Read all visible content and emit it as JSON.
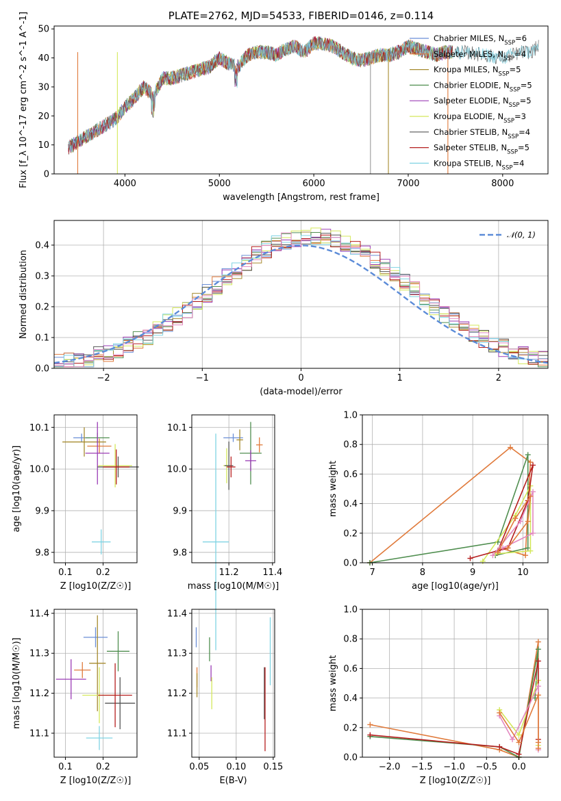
{
  "chart_data": [
    {
      "id": "spectrum",
      "type": "line",
      "title": "PLATE=2762, MJD=54533, FIBERID=0146, z=0.114",
      "xlabel": "wavelength [Angstrom, rest frame]",
      "ylabel": "Flux [f_λ 10^-17 erg cm^-2 s^-1 A^-1]",
      "xlim": [
        3250,
        8480
      ],
      "ylim": [
        0,
        51
      ],
      "xticks": [
        4000,
        5000,
        6000,
        7000,
        8000
      ],
      "yticks": [
        0,
        10,
        20,
        30,
        40,
        50
      ],
      "grid": false,
      "legend_position": "right",
      "envelope": {
        "x": [
          3400,
          3500,
          3600,
          3700,
          3800,
          3900,
          4000,
          4100,
          4200,
          4300,
          4400,
          4500,
          4700,
          4900,
          5000,
          5100,
          5200,
          5300,
          5400,
          5500,
          5600,
          5700,
          5800,
          5900,
          6000,
          6100,
          6200,
          6300,
          6400,
          6500,
          6600,
          6700,
          6800,
          6900,
          7000,
          7100,
          7200,
          7300,
          7400,
          7600,
          7800,
          8000,
          8100,
          8200,
          8300,
          8380
        ],
        "y": [
          9,
          11,
          13,
          15,
          17,
          19,
          23,
          26,
          30,
          27,
          33,
          33,
          35,
          37,
          40,
          38,
          37,
          41,
          42,
          42,
          41,
          43,
          44,
          42,
          45,
          45,
          44,
          42,
          40,
          39,
          40,
          41,
          41,
          42,
          44,
          43,
          42,
          41,
          42,
          42,
          41,
          40,
          41,
          42,
          42,
          44
        ]
      }
    },
    {
      "id": "residuals",
      "type": "histogram",
      "xlabel": "(data-model)/error",
      "ylabel": "Normed distribution",
      "xlim": [
        -2.5,
        2.5
      ],
      "ylim": [
        0,
        0.48
      ],
      "xticks": [
        -2,
        -1,
        0,
        1,
        2
      ],
      "yticks": [
        0.0,
        0.1,
        0.2,
        0.3,
        0.4
      ],
      "grid": true,
      "legend_position": "top-right",
      "legend_label": "𝒩(0, 1)",
      "bin_width": 0.1
    },
    {
      "id": "age_vs_Z",
      "type": "scatter",
      "xlabel": "Z [log10(Z/Z☉)]",
      "ylabel": "age [log10(age/yr)]",
      "xlim": [
        0.07,
        0.29
      ],
      "ylim": [
        9.775,
        10.13
      ],
      "xticks": [
        0.1,
        0.2
      ],
      "yticks": [
        9.8,
        9.9,
        10.0,
        10.1
      ],
      "grid": true,
      "points": [
        {
          "x": 0.143,
          "y": 10.075,
          "ex": 0.022,
          "ey": 0.01
        },
        {
          "x": 0.19,
          "y": 10.055,
          "ex": 0.032,
          "ey": 0.018
        },
        {
          "x": 0.15,
          "y": 10.065,
          "ex": 0.058,
          "ey": 0.035
        },
        {
          "x": 0.185,
          "y": 10.075,
          "ex": 0.032,
          "ey": 0.012
        },
        {
          "x": 0.185,
          "y": 10.038,
          "ex": 0.032,
          "ey": 0.075
        },
        {
          "x": 0.232,
          "y": 10.008,
          "ex": 0.045,
          "ey": 0.052
        },
        {
          "x": 0.24,
          "y": 10.005,
          "ex": 0.055,
          "ey": 0.025
        },
        {
          "x": 0.235,
          "y": 10.005,
          "ex": 0.035,
          "ey": 0.042
        },
        {
          "x": 0.195,
          "y": 9.825,
          "ex": 0.025,
          "ey": 0.03
        }
      ]
    },
    {
      "id": "age_vs_mass",
      "type": "scatter",
      "xlabel": "mass [log10(M/M☉)]",
      "ylabel": "",
      "xlim": [
        11.03,
        11.41
      ],
      "ylim": [
        9.775,
        10.13
      ],
      "xticks": [
        11.2,
        11.4
      ],
      "yticks": [
        9.8,
        9.9,
        10.0,
        10.1
      ],
      "grid": true,
      "points": [
        {
          "x": 11.22,
          "y": 10.075,
          "ex": 0.045,
          "ey": 0.01
        },
        {
          "x": 11.34,
          "y": 10.058,
          "ex": 0.015,
          "ey": 0.018
        },
        {
          "x": 11.25,
          "y": 10.07,
          "ex": 0.015,
          "ey": 0.025
        },
        {
          "x": 11.3,
          "y": 10.038,
          "ex": 0.05,
          "ey": 0.075
        },
        {
          "x": 11.3,
          "y": 10.02,
          "ex": 0.025,
          "ey": 0.025
        },
        {
          "x": 11.19,
          "y": 10.008,
          "ex": 0.015,
          "ey": 0.042
        },
        {
          "x": 11.2,
          "y": 10.008,
          "ex": 0.02,
          "ey": 0.058
        },
        {
          "x": 11.21,
          "y": 10.005,
          "ex": 0.02,
          "ey": 0.025
        },
        {
          "x": 11.14,
          "y": 9.825,
          "ex": 0.06,
          "ey": 0.26
        }
      ]
    },
    {
      "id": "weight_vs_age",
      "type": "line",
      "xlabel": "age [log10(age/yr)]",
      "ylabel": "mass weight",
      "xlim": [
        6.8,
        10.5
      ],
      "ylim": [
        0,
        1.0
      ],
      "xticks": [
        7,
        8,
        9,
        10
      ],
      "yticks": [
        0.0,
        0.2,
        0.4,
        0.6,
        0.8,
        1.0
      ],
      "grid": true,
      "series": [
        {
          "x": [
            6.95,
            9.75,
            10.15,
            10.05,
            9.55
          ],
          "y": [
            0.0,
            0.78,
            0.68,
            0.05,
            0.1
          ]
        },
        {
          "x": [
            6.95,
            9.5,
            10.1,
            10.1,
            9.45
          ],
          "y": [
            0.0,
            0.14,
            0.73,
            0.1,
            0.05
          ]
        },
        {
          "x": [
            9.2,
            9.85,
            10.15,
            10.15,
            9.45
          ],
          "y": [
            0.01,
            0.32,
            0.52,
            0.08,
            0.06
          ]
        },
        {
          "x": [
            8.95,
            9.7,
            10.1,
            10.2,
            9.5
          ],
          "y": [
            0.03,
            0.1,
            0.42,
            0.66,
            0.08
          ]
        },
        {
          "x": [
            9.4,
            9.95,
            10.2,
            10.2,
            9.6
          ],
          "y": [
            0.05,
            0.28,
            0.48,
            0.2,
            0.1
          ]
        },
        {
          "x": [
            9.5,
            9.85,
            10.15,
            10.1,
            9.7
          ],
          "y": [
            0.07,
            0.3,
            0.45,
            0.28,
            0.1
          ]
        }
      ]
    },
    {
      "id": "mass_vs_Z",
      "type": "scatter",
      "xlabel": "Z [log10(Z/Z☉)]",
      "ylabel": "mass [log10(M/M☉)]",
      "xlim": [
        0.07,
        0.29
      ],
      "ylim": [
        11.04,
        11.41
      ],
      "xticks": [
        0.1,
        0.2
      ],
      "yticks": [
        11.1,
        11.2,
        11.3,
        11.4
      ],
      "grid": true,
      "points": [
        {
          "x": 0.18,
          "y": 11.34,
          "ex": 0.032,
          "ey": 0.025
        },
        {
          "x": 0.145,
          "y": 11.258,
          "ex": 0.022,
          "ey": 0.02
        },
        {
          "x": 0.185,
          "y": 11.275,
          "ex": 0.022,
          "ey": 0.12
        },
        {
          "x": 0.24,
          "y": 11.305,
          "ex": 0.03,
          "ey": 0.05
        },
        {
          "x": 0.115,
          "y": 11.235,
          "ex": 0.04,
          "ey": 0.05
        },
        {
          "x": 0.19,
          "y": 11.195,
          "ex": 0.045,
          "ey": 0.07
        },
        {
          "x": 0.245,
          "y": 11.175,
          "ex": 0.04,
          "ey": 0.065
        },
        {
          "x": 0.232,
          "y": 11.195,
          "ex": 0.045,
          "ey": 0.08
        },
        {
          "x": 0.19,
          "y": 11.088,
          "ex": 0.035,
          "ey": 0.03
        }
      ]
    },
    {
      "id": "mass_vs_EBV",
      "type": "scatter",
      "xlabel": "E(B-V)",
      "ylabel": "",
      "xlim": [
        0.04,
        0.152
      ],
      "ylim": [
        11.04,
        11.41
      ],
      "xticks": [
        0.05,
        0.1,
        0.15
      ],
      "yticks": [
        11.1,
        11.2,
        11.3,
        11.4
      ],
      "grid": true,
      "points": [
        {
          "x": 0.046,
          "y": 11.34,
          "ey": 0.025
        },
        {
          "x": 0.047,
          "y": 11.24,
          "ey": 0.025
        },
        {
          "x": 0.047,
          "y": 11.22,
          "ey": 0.03
        },
        {
          "x": 0.064,
          "y": 11.31,
          "ey": 0.03
        },
        {
          "x": 0.066,
          "y": 11.25,
          "ey": 0.02
        },
        {
          "x": 0.067,
          "y": 11.2,
          "ey": 0.04
        },
        {
          "x": 0.138,
          "y": 11.2,
          "ey": 0.065
        },
        {
          "x": 0.139,
          "y": 11.16,
          "ey": 0.105
        },
        {
          "x": 0.146,
          "y": 11.305,
          "ey": 0.085
        }
      ]
    },
    {
      "id": "weight_vs_Z",
      "type": "line",
      "xlabel": "Z [log10(Z/Z☉)]",
      "ylabel": "mass weight",
      "xlim": [
        -2.42,
        0.45
      ],
      "ylim": [
        0,
        1.0
      ],
      "xticks": [
        -2.0,
        -1.5,
        -1.0,
        -0.5,
        0.0
      ],
      "yticks": [
        0.0,
        0.2,
        0.4,
        0.6,
        0.8,
        1.0
      ],
      "grid": true,
      "series": [
        {
          "x": [
            -2.3,
            -0.3,
            0.0,
            0.3,
            0.3
          ],
          "y": [
            0.22,
            0.05,
            0.0,
            0.78,
            0.1
          ]
        },
        {
          "x": [
            -2.3,
            -0.3,
            0.0,
            0.3,
            0.25
          ],
          "y": [
            0.14,
            0.07,
            0.0,
            0.73,
            0.4
          ]
        },
        {
          "x": [
            -0.3,
            0.0,
            0.3,
            0.3
          ],
          "y": [
            0.32,
            0.15,
            0.52,
            0.08
          ]
        },
        {
          "x": [
            -2.3,
            -0.3,
            0.0,
            0.3,
            0.3
          ],
          "y": [
            0.15,
            0.07,
            0.02,
            0.65,
            0.12
          ]
        },
        {
          "x": [
            -0.3,
            -0.1,
            0.3,
            0.3
          ],
          "y": [
            0.28,
            0.12,
            0.48,
            0.05
          ]
        },
        {
          "x": [
            -0.3,
            0.0,
            0.3,
            0.3
          ],
          "y": [
            0.3,
            0.1,
            0.42,
            0.06
          ]
        }
      ]
    }
  ],
  "legend": [
    {
      "label": "Chabrier MILES, N",
      "sub": "SSP",
      "eq": "=6",
      "color": "#6a8ed6"
    },
    {
      "label": "Salpeter MILES, N",
      "sub": "SSP",
      "eq": "=4",
      "color": "#e07a3b"
    },
    {
      "label": "Kroupa MILES, N",
      "sub": "SSP",
      "eq": "=5",
      "color": "#a68a2e"
    },
    {
      "label": "Chabrier ELODIE, N",
      "sub": "SSP",
      "eq": "=5",
      "color": "#4f8e4f"
    },
    {
      "label": "Salpeter ELODIE, N",
      "sub": "SSP",
      "eq": "=5",
      "color": "#9a3bb5"
    },
    {
      "label": "Kroupa ELODIE, N",
      "sub": "SSP",
      "eq": "=3",
      "color": "#d4e85a"
    },
    {
      "label": "Chabrier STELIB, N",
      "sub": "SSP",
      "eq": "=4",
      "color": "#555555"
    },
    {
      "label": "Salpeter STELIB, N",
      "sub": "SSP",
      "eq": "=5",
      "color": "#b51d1d"
    },
    {
      "label": "Kroupa STELIB, N",
      "sub": "SSP",
      "eq": "=4",
      "color": "#7fd3e3"
    }
  ],
  "colors": [
    "#6a8ed6",
    "#e07a3b",
    "#a68a2e",
    "#4f8e4f",
    "#9a3bb5",
    "#d4e85a",
    "#555555",
    "#b51d1d",
    "#7fd3e3",
    "#e389c0"
  ],
  "gaussian_color": "#5b8bd8"
}
